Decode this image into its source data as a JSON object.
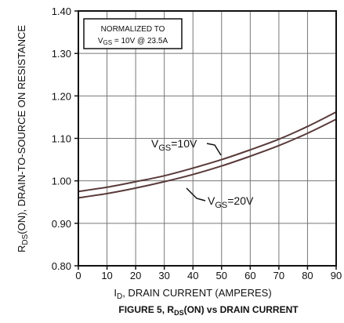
{
  "chart_data": {
    "type": "line",
    "title": "FIGURE 5, R(ON) vs DRAIN CURRENT",
    "title_parts": {
      "pre": "FIGURE 5, R",
      "sub": "DS",
      "post": "(ON) vs DRAIN CURRENT"
    },
    "xlabel": "I, DRAIN CURRENT (AMPERES)",
    "xlabel_parts": {
      "pre": "I",
      "sub": "D",
      "post": ", DRAIN CURRENT (AMPERES)"
    },
    "ylabel": "R(ON), DRAIN-TO-SOURCE ON RESISTANCE",
    "ylabel_parts": {
      "pre": "R",
      "sub": "DS",
      "post": "(ON), DRAIN-TO-SOURCE ON RESISTANCE"
    },
    "xlim": [
      0,
      90
    ],
    "ylim": [
      0.8,
      1.4
    ],
    "x_ticks": [
      "0",
      "10",
      "20",
      "30",
      "40",
      "50",
      "60",
      "70",
      "80",
      "90"
    ],
    "y_ticks": [
      "1.40",
      "1.30",
      "1.20",
      "1.10",
      "1.00",
      "0.90",
      "0.80"
    ],
    "grid": true,
    "note": {
      "line1": "NORMALIZED TO",
      "line2_pre": "V",
      "line2_sub": "GS",
      "line2_post": " = 10V  @  23.5A"
    },
    "series": [
      {
        "name": "VGS=10V",
        "label_parts": {
          "pre": "V",
          "sub": "GS",
          "post": "=10V"
        },
        "x": [
          0,
          10,
          20,
          30,
          40,
          50,
          60,
          70,
          80,
          90
        ],
        "y": [
          0.975,
          0.985,
          0.998,
          1.012,
          1.03,
          1.05,
          1.073,
          1.098,
          1.128,
          1.162
        ]
      },
      {
        "name": "VGS=20V",
        "label_parts": {
          "pre": "V",
          "sub": "GS",
          "post": "=20V"
        },
        "x": [
          0,
          10,
          20,
          30,
          40,
          50,
          60,
          70,
          80,
          90
        ],
        "y": [
          0.96,
          0.97,
          0.983,
          0.998,
          1.015,
          1.035,
          1.058,
          1.083,
          1.112,
          1.145
        ]
      }
    ]
  }
}
